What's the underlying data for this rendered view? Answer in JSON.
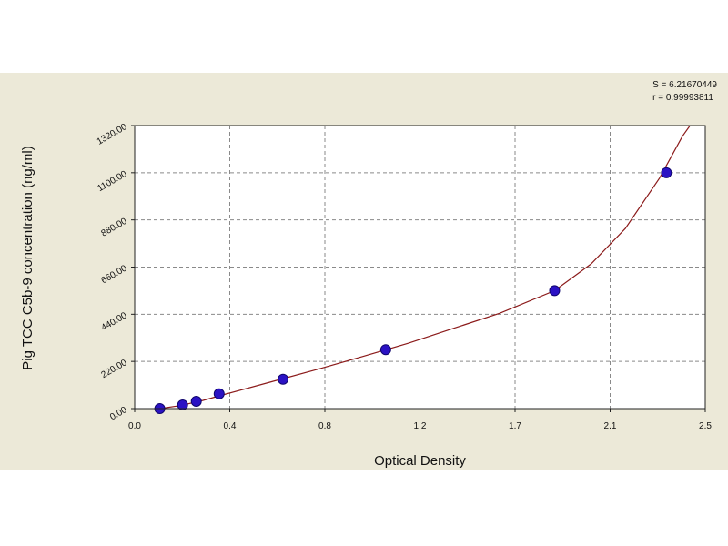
{
  "stats": {
    "line1": "S = 6.21670449",
    "line2": "r = 0.99993811"
  },
  "chart_data": {
    "type": "scatter",
    "xlabel": "Optical Density",
    "ylabel": "Pig TCC C5b-9 concentration (ng/ml)",
    "x_ticks": [
      "0.0",
      "0.4",
      "0.8",
      "1.2",
      "1.7",
      "2.1",
      "2.5"
    ],
    "x_tick_values": [
      0,
      0.416667,
      0.833333,
      1.25,
      1.666667,
      2.083333,
      2.5
    ],
    "y_ticks": [
      "0.00",
      "220.00",
      "440.00",
      "660.00",
      "880.00",
      "1100.00",
      "1320.00"
    ],
    "y_tick_values": [
      0,
      220,
      440,
      660,
      880,
      1100,
      1320
    ],
    "xlim": [
      0,
      2.5
    ],
    "ylim": [
      0,
      1320
    ],
    "grid": true,
    "series": [
      {
        "points": [
          {
            "x": 0.11,
            "y": 0
          },
          {
            "x": 0.21,
            "y": 17
          },
          {
            "x": 0.27,
            "y": 34
          },
          {
            "x": 0.37,
            "y": 69
          },
          {
            "x": 0.65,
            "y": 137
          },
          {
            "x": 1.1,
            "y": 275
          },
          {
            "x": 1.84,
            "y": 550
          },
          {
            "x": 2.33,
            "y": 1100
          }
        ]
      }
    ],
    "fit_curve": [
      {
        "x": 0.05,
        "y": -8
      },
      {
        "x": 0.11,
        "y": 0
      },
      {
        "x": 0.2,
        "y": 14
      },
      {
        "x": 0.3,
        "y": 38
      },
      {
        "x": 0.4,
        "y": 68
      },
      {
        "x": 0.6,
        "y": 125
      },
      {
        "x": 0.8,
        "y": 183
      },
      {
        "x": 1.0,
        "y": 243
      },
      {
        "x": 1.2,
        "y": 305
      },
      {
        "x": 1.4,
        "y": 375
      },
      {
        "x": 1.6,
        "y": 445
      },
      {
        "x": 1.84,
        "y": 550
      },
      {
        "x": 2.0,
        "y": 675
      },
      {
        "x": 2.15,
        "y": 840
      },
      {
        "x": 2.3,
        "y": 1075
      },
      {
        "x": 2.4,
        "y": 1270
      },
      {
        "x": 2.44,
        "y": 1330
      }
    ],
    "colors": {
      "point_fill": "#2b12c4",
      "point_stroke": "#10066e",
      "curve": "#8b1a1a",
      "grid": "#8a8a8a",
      "plot_bg": "#ffffff",
      "panel_bg": "#ece9d8"
    }
  }
}
